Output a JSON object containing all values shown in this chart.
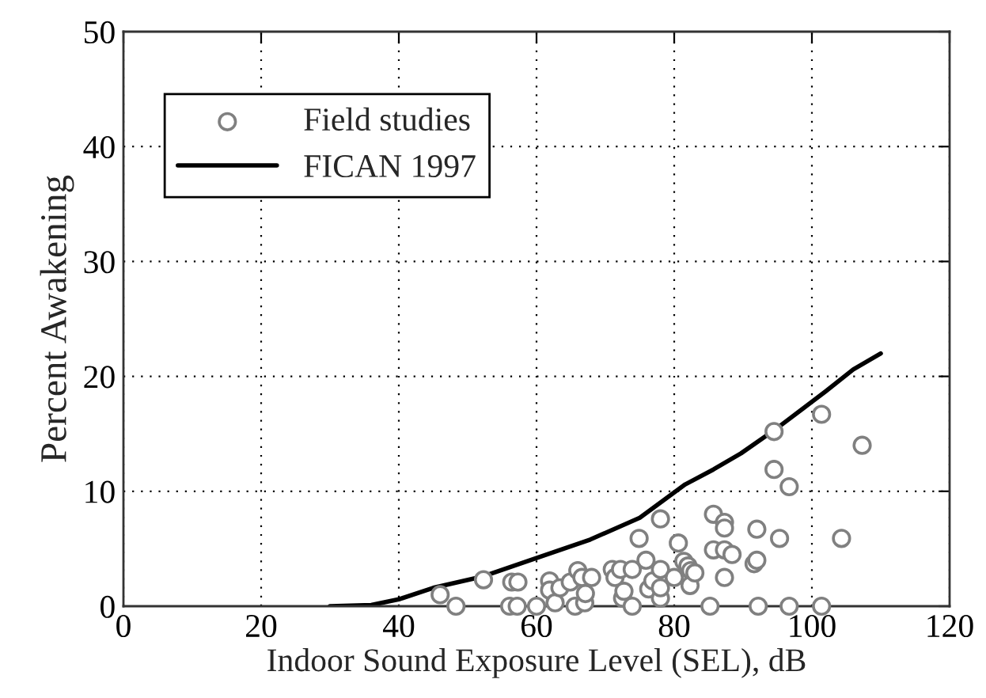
{
  "chart_data": {
    "type": "scatter",
    "xlabel": "Indoor Sound Exposure Level (SEL), dB",
    "ylabel": "Percent Awakening",
    "xlim": [
      0,
      120
    ],
    "ylim": [
      0,
      50
    ],
    "xticks": [
      0,
      20,
      40,
      60,
      80,
      100,
      120
    ],
    "yticks": [
      0,
      10,
      20,
      30,
      40,
      50
    ],
    "grid": true,
    "legend": "top left",
    "series": [
      {
        "name": "Field studies",
        "marker": "circle",
        "color": "#808080",
        "x": [
          46.0,
          48.3,
          52.3,
          56.1,
          57.2,
          56.4,
          57.3,
          60.0,
          61.9,
          61.9,
          62.7,
          63.4,
          64.9,
          65.6,
          66.0,
          66.6,
          67.0,
          67.1,
          68.0,
          71.0,
          71.4,
          72.2,
          72.5,
          72.7,
          73.9,
          73.9,
          74.9,
          75.9,
          76.3,
          76.9,
          78.0,
          78.0,
          78.0,
          78.0,
          80.0,
          80.6,
          81.4,
          82.0,
          82.4,
          82.3,
          83.0,
          85.2,
          85.7,
          85.7,
          87.3,
          87.3,
          87.3,
          87.3,
          88.4,
          91.6,
          92.0,
          92.0,
          92.2,
          94.5,
          94.5,
          95.3,
          96.7,
          96.7,
          101.4,
          101.4,
          104.3,
          107.3
        ],
        "values": [
          1.0,
          0,
          2.3,
          0,
          0,
          2.1,
          2.1,
          0,
          2.2,
          1.4,
          0.3,
          1.6,
          2.1,
          0,
          3.1,
          2.5,
          0.3,
          1.1,
          2.5,
          3.2,
          2.5,
          3.2,
          0.7,
          1.3,
          3.2,
          0,
          5.9,
          4.0,
          1.5,
          2.2,
          7.6,
          3.2,
          0.7,
          1.6,
          2.5,
          5.5,
          3.9,
          3.5,
          3.1,
          1.8,
          2.9,
          0,
          8.0,
          4.9,
          7.3,
          6.8,
          4.9,
          2.5,
          4.5,
          3.7,
          4.0,
          6.7,
          0,
          15.2,
          11.9,
          5.9,
          0,
          10.4,
          16.7,
          0,
          5.9,
          14.0
        ]
      },
      {
        "name": "FICAN 1997",
        "type": "line",
        "marker": "none",
        "line_style": "solid",
        "color": "#000000",
        "x": [
          30,
          36,
          40,
          45,
          52.3,
          60.5,
          67.8,
          75,
          77.5,
          81.6,
          85.7,
          89.7,
          94.5,
          98.7,
          102,
          106,
          110
        ],
        "values": [
          0,
          0.1,
          0.6,
          1.6,
          2.6,
          4.3,
          5.8,
          7.7,
          8.8,
          10.6,
          11.9,
          13.3,
          15.3,
          17.2,
          18.7,
          20.6,
          22.0
        ]
      }
    ]
  }
}
